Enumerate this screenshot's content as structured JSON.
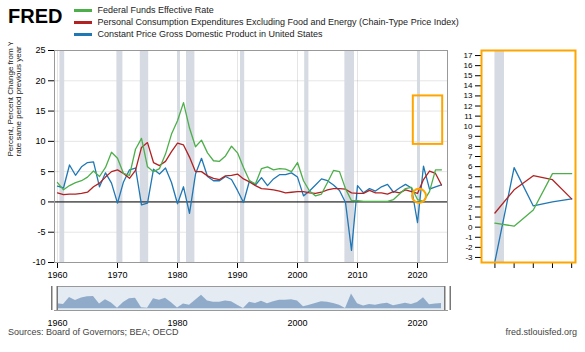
{
  "chart_data": [
    {
      "type": "line",
      "title": "FRED",
      "x": [
        1960,
        1961,
        1962,
        1963,
        1964,
        1965,
        1966,
        1967,
        1968,
        1969,
        1970,
        1971,
        1972,
        1973,
        1974,
        1975,
        1976,
        1977,
        1978,
        1979,
        1980,
        1981,
        1982,
        1983,
        1984,
        1985,
        1986,
        1987,
        1988,
        1989,
        1990,
        1991,
        1992,
        1993,
        1994,
        1995,
        1996,
        1997,
        1998,
        1999,
        2000,
        2001,
        2002,
        2003,
        2004,
        2005,
        2006,
        2007,
        2008,
        2009,
        2010,
        2011,
        2012,
        2013,
        2014,
        2015,
        2016,
        2017,
        2018,
        2019,
        2020,
        2021,
        2022,
        2023,
        2024
      ],
      "series": [
        {
          "name": "Federal Funds Effective Rate",
          "color": "#4daf4a",
          "values": [
            3.2,
            2.0,
            2.7,
            3.2,
            3.5,
            4.1,
            5.1,
            4.2,
            5.7,
            8.2,
            7.2,
            4.7,
            4.4,
            8.7,
            10.5,
            5.8,
            5.0,
            5.5,
            7.9,
            11.2,
            13.4,
            16.4,
            12.2,
            9.1,
            10.2,
            8.1,
            6.8,
            6.7,
            7.6,
            9.2,
            8.1,
            5.7,
            3.5,
            3.0,
            5.5,
            5.8,
            5.3,
            5.5,
            5.4,
            5.0,
            6.5,
            3.5,
            1.8,
            1.0,
            1.3,
            3.2,
            5.2,
            5.0,
            2.2,
            0.2,
            0.2,
            0.1,
            0.1,
            0.1,
            0.1,
            0.1,
            0.4,
            1.3,
            2.2,
            2.4,
            0.4,
            0.1,
            1.7,
            5.3,
            5.3
          ]
        },
        {
          "name": "Personal Consumption Expenditures Excluding Food and Energy (Chain-Type Price Index)",
          "color": "#b22222",
          "values": [
            1.5,
            1.2,
            1.3,
            1.3,
            1.4,
            1.6,
            2.5,
            3.1,
            4.1,
            5.0,
            5.3,
            4.7,
            3.9,
            5.2,
            9.0,
            9.8,
            6.5,
            6.0,
            6.7,
            8.3,
            9.7,
            9.4,
            7.4,
            5.0,
            5.0,
            4.3,
            3.9,
            3.7,
            4.3,
            4.4,
            4.6,
            3.8,
            3.3,
            2.7,
            2.2,
            2.1,
            2.0,
            1.8,
            1.5,
            1.6,
            1.7,
            1.7,
            1.5,
            1.4,
            1.6,
            2.0,
            2.2,
            2.2,
            2.1,
            1.5,
            1.4,
            1.4,
            1.9,
            1.5,
            1.5,
            1.3,
            1.7,
            1.5,
            2.0,
            1.7,
            1.4,
            3.7,
            5.1,
            4.7,
            2.8
          ]
        },
        {
          "name": "Constant Price Gross Domestic Product in United States",
          "color": "#1f77b4",
          "values": [
            2.6,
            2.3,
            6.1,
            4.4,
            5.8,
            6.5,
            6.6,
            2.5,
            4.8,
            3.1,
            -0.2,
            3.3,
            5.3,
            5.6,
            -0.5,
            -0.2,
            5.4,
            4.6,
            5.6,
            3.2,
            -0.3,
            2.5,
            -1.9,
            4.6,
            7.2,
            4.2,
            3.5,
            3.5,
            4.2,
            3.7,
            1.9,
            -0.1,
            3.5,
            2.8,
            4.0,
            2.7,
            3.8,
            4.5,
            4.5,
            4.8,
            4.1,
            1.0,
            1.8,
            2.8,
            3.8,
            3.5,
            2.8,
            1.9,
            -0.1,
            -8.0,
            2.7,
            1.5,
            2.2,
            1.8,
            2.5,
            2.9,
            1.6,
            2.3,
            2.9,
            2.3,
            -3.4,
            5.9,
            2.1,
            2.5,
            2.8
          ]
        }
      ],
      "xlim": [
        1959.5,
        2025
      ],
      "xticks": [
        1960,
        1970,
        1980,
        1990,
        2000,
        2010,
        2020
      ],
      "ylim": [
        -10,
        25
      ],
      "yticks": [
        -10,
        -5,
        0,
        5,
        10,
        15,
        20,
        25
      ],
      "ylabel": "Percent, Percent Change from Year Ago , Growth\nrate same period previous year",
      "grid": true,
      "legend": "top",
      "recessions": [
        [
          1960.4,
          1961.2
        ],
        [
          1969.9,
          1970.9
        ],
        [
          1973.8,
          1975.2
        ],
        [
          1980.0,
          1980.5
        ],
        [
          1981.5,
          1982.9
        ],
        [
          1990.5,
          1991.2
        ],
        [
          2001.2,
          2001.9
        ],
        [
          2007.9,
          2009.5
        ],
        [
          2020.0,
          2020.5
        ]
      ],
      "zero_line": 0,
      "highlight_box": {
        "x": [
          2019.3,
          2024.2
        ],
        "y": [
          9.5,
          17.5
        ],
        "color": "#ffa500"
      },
      "highlight_circle": {
        "x": 2020.25,
        "y": 1.0,
        "color": "#ffa500"
      },
      "annotations": [
        "Sources: Board of Governors; BEA; OECD",
        "fred.stlouisfed.org"
      ]
    },
    {
      "type": "line",
      "x": [
        2020,
        2021,
        2022,
        2023,
        2024
      ],
      "series": [
        {
          "name": "Federal Funds Effective Rate",
          "color": "#4daf4a",
          "values": [
            0.4,
            0.1,
            1.7,
            5.3,
            5.3
          ]
        },
        {
          "name": "Personal Consumption Expenditures Excluding Food and Energy (Chain-Type Price Index)",
          "color": "#b22222",
          "values": [
            1.4,
            3.7,
            5.1,
            4.7,
            2.8
          ]
        },
        {
          "name": "Constant Price Gross Domestic Product in United States",
          "color": "#1f77b4",
          "values": [
            -3.4,
            5.9,
            2.1,
            2.5,
            2.8
          ]
        }
      ],
      "xlim": [
        2019.3,
        2024.2
      ],
      "xticks": [
        2020,
        2021,
        2022,
        2023,
        2024
      ],
      "ylim": [
        -3.5,
        17.5
      ],
      "yticks": [
        -3,
        -2,
        -1,
        0,
        1,
        2,
        3,
        4,
        5,
        6,
        7,
        8,
        9,
        10,
        11,
        12,
        13,
        14,
        15,
        16,
        17
      ],
      "tick_labels": "y"
    },
    {
      "type": "area",
      "x": [
        1960,
        1961,
        1962,
        1963,
        1964,
        1965,
        1966,
        1967,
        1968,
        1969,
        1970,
        1971,
        1972,
        1973,
        1974,
        1975,
        1976,
        1977,
        1978,
        1979,
        1980,
        1981,
        1982,
        1983,
        1984,
        1985,
        1986,
        1987,
        1988,
        1989,
        1990,
        1991,
        1992,
        1993,
        1994,
        1995,
        1996,
        1997,
        1998,
        1999,
        2000,
        2001,
        2002,
        2003,
        2004,
        2005,
        2006,
        2007,
        2008,
        2009,
        2010,
        2011,
        2012,
        2013,
        2014,
        2015,
        2016,
        2017,
        2018,
        2019,
        2020,
        2021,
        2022,
        2023,
        2024
      ],
      "values": [
        2.6,
        2.3,
        6.1,
        4.4,
        5.8,
        6.5,
        6.6,
        2.5,
        4.8,
        3.1,
        0.2,
        3.3,
        5.3,
        5.6,
        0.5,
        0.2,
        5.4,
        4.6,
        5.6,
        3.2,
        0.3,
        2.5,
        1.9,
        4.6,
        7.2,
        4.2,
        3.5,
        3.5,
        4.2,
        3.7,
        1.9,
        0.1,
        3.5,
        2.8,
        4.0,
        2.7,
        3.8,
        4.5,
        4.5,
        4.8,
        4.1,
        1.0,
        1.8,
        2.8,
        3.8,
        3.5,
        2.8,
        1.9,
        0.1,
        8.0,
        2.7,
        1.5,
        2.2,
        1.8,
        2.5,
        2.9,
        1.6,
        2.3,
        2.9,
        2.3,
        3.4,
        5.9,
        2.1,
        2.5,
        2.8
      ],
      "color": "#7a9bbf",
      "xlim": [
        1959.5,
        2025
      ],
      "xticks": [
        1960,
        1980,
        2000,
        2020
      ],
      "ylim": [
        -1,
        12
      ],
      "tick_labels": "x"
    }
  ]
}
